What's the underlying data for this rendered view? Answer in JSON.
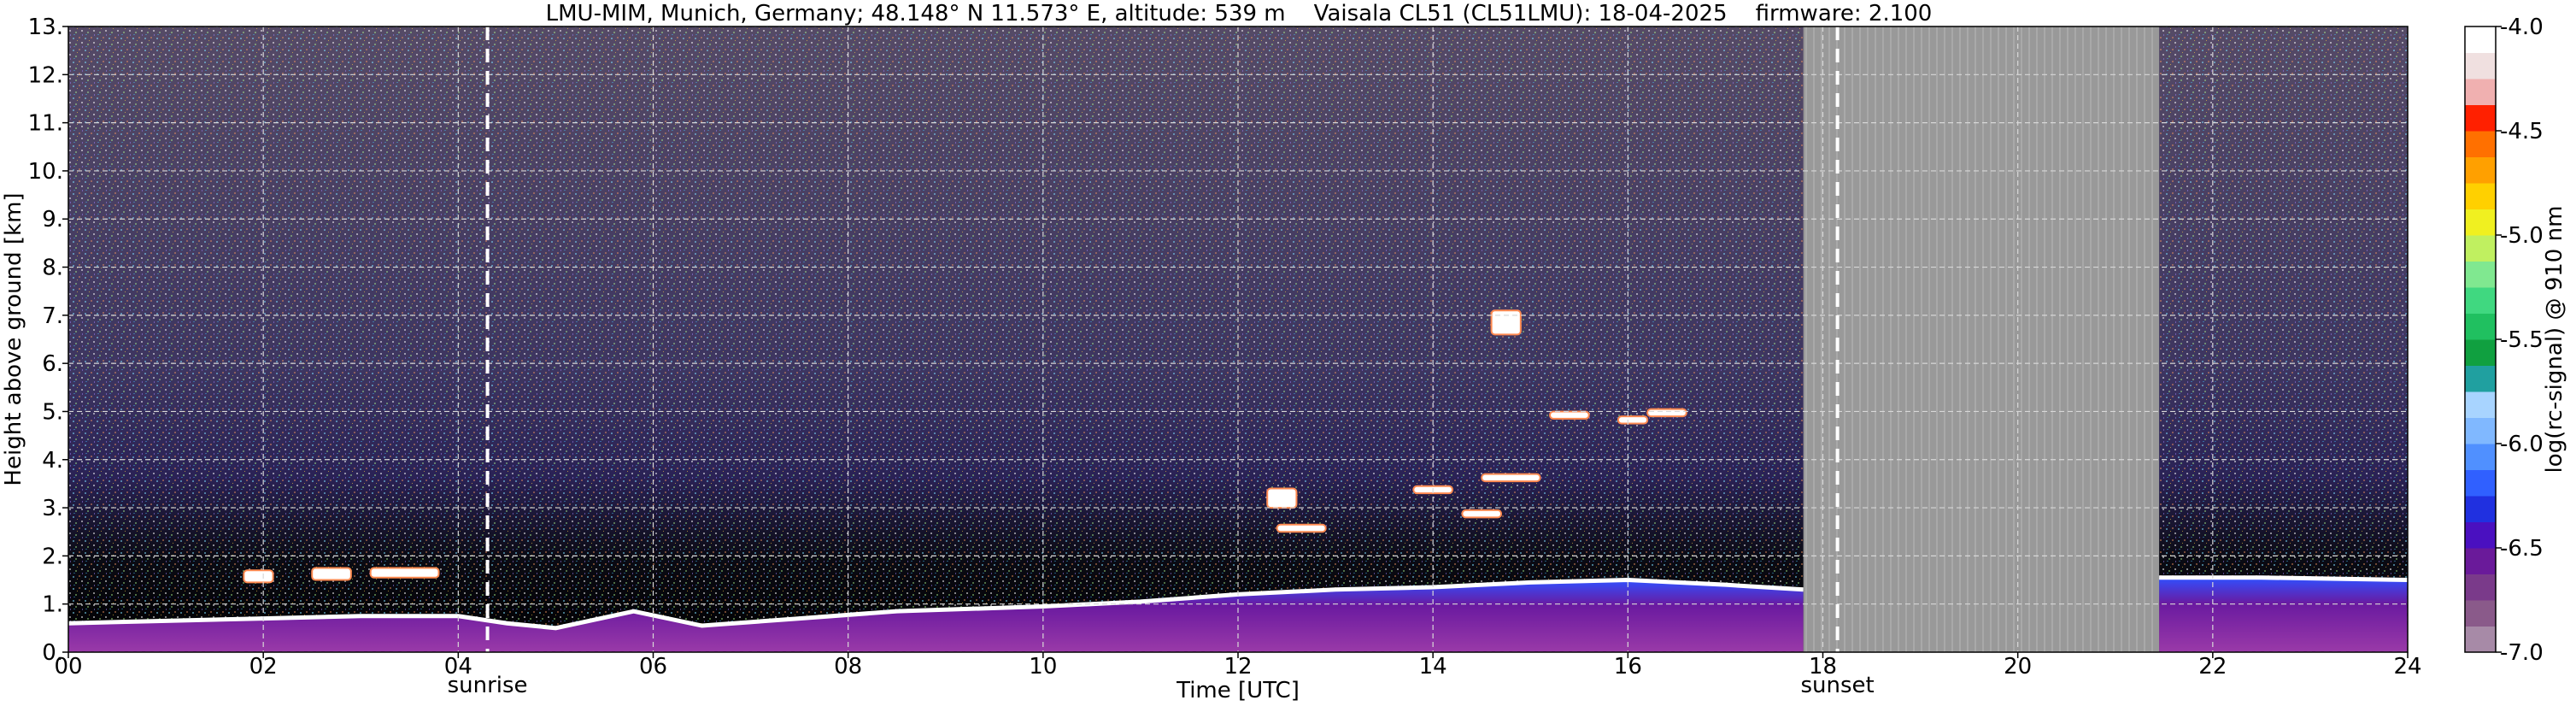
{
  "title": "LMU-MIM, Munich, Germany; 48.148° N 11.573° E, altitude: 539 m    Vaisala CL51 (CL51LMU): 18-04-2025    firmware: 2.100",
  "chart_data": {
    "type": "heatmap",
    "xlabel": "Time [UTC]",
    "ylabel": "Height above ground [km]",
    "colorbar_label": "log(rc-signal) @ 910 nm",
    "xlim": [
      0,
      24
    ],
    "ylim": [
      0,
      13
    ],
    "x_ticks": [
      "00",
      "02",
      "04",
      "06",
      "08",
      "10",
      "12",
      "14",
      "16",
      "18",
      "20",
      "22",
      "24"
    ],
    "y_ticks": [
      "0.",
      "1.",
      "2.",
      "3.",
      "4.",
      "5.",
      "6.",
      "7.",
      "8.",
      "9.",
      "10.",
      "11.",
      "12.",
      "13."
    ],
    "colorbar_range": [
      -7.0,
      -4.0
    ],
    "colorbar_ticks": [
      "-4.0",
      "-4.5",
      "-5.0",
      "-5.5",
      "-6.0",
      "-6.5",
      "-7.0"
    ],
    "colorbar_colors": [
      "#a78aa7",
      "#8a5a8a",
      "#7a3a8a",
      "#6a1a9a",
      "#4a10c0",
      "#2030e0",
      "#3060ff",
      "#5090ff",
      "#80b8ff",
      "#a8d4ff",
      "#20a0a0",
      "#10a040",
      "#20c060",
      "#40d880",
      "#80e890",
      "#c0f060",
      "#f0f020",
      "#ffd000",
      "#ffa000",
      "#ff7000",
      "#ff2000",
      "#f0b0b0",
      "#f0e0e0",
      "#ffffff"
    ],
    "grid": true,
    "vertical_markers": [
      {
        "label": "sunrise",
        "x": 4.3
      },
      {
        "label": "sunset",
        "x": 18.15
      }
    ],
    "no_data_intervals": [
      [
        17.8,
        21.45
      ]
    ],
    "boundary_layer_top_km": [
      {
        "x": 0.0,
        "y": 0.6
      },
      {
        "x": 1.0,
        "y": 0.65
      },
      {
        "x": 2.0,
        "y": 0.7
      },
      {
        "x": 3.0,
        "y": 0.75
      },
      {
        "x": 4.0,
        "y": 0.75
      },
      {
        "x": 4.5,
        "y": 0.6
      },
      {
        "x": 5.0,
        "y": 0.5
      },
      {
        "x": 5.8,
        "y": 0.85
      },
      {
        "x": 6.5,
        "y": 0.55
      },
      {
        "x": 7.5,
        "y": 0.7
      },
      {
        "x": 8.5,
        "y": 0.85
      },
      {
        "x": 10.0,
        "y": 0.95
      },
      {
        "x": 11.0,
        "y": 1.05
      },
      {
        "x": 12.0,
        "y": 1.2
      },
      {
        "x": 13.0,
        "y": 1.3
      },
      {
        "x": 14.0,
        "y": 1.35
      },
      {
        "x": 15.0,
        "y": 1.45
      },
      {
        "x": 16.0,
        "y": 1.5
      },
      {
        "x": 17.0,
        "y": 1.4
      },
      {
        "x": 17.8,
        "y": 1.3
      },
      {
        "x": 21.45,
        "y": 1.55
      },
      {
        "x": 22.5,
        "y": 1.55
      },
      {
        "x": 24.0,
        "y": 1.5
      }
    ],
    "cloud_features": [
      {
        "x0": 1.8,
        "x1": 2.1,
        "y0": 1.45,
        "y1": 1.7
      },
      {
        "x0": 2.5,
        "x1": 2.9,
        "y0": 1.5,
        "y1": 1.75
      },
      {
        "x0": 3.1,
        "x1": 3.8,
        "y0": 1.55,
        "y1": 1.75
      },
      {
        "x0": 12.3,
        "x1": 12.6,
        "y0": 3.0,
        "y1": 3.4
      },
      {
        "x0": 12.4,
        "x1": 12.9,
        "y0": 2.5,
        "y1": 2.65
      },
      {
        "x0": 13.8,
        "x1": 14.2,
        "y0": 3.3,
        "y1": 3.45
      },
      {
        "x0": 14.3,
        "x1": 14.7,
        "y0": 2.8,
        "y1": 2.95
      },
      {
        "x0": 14.5,
        "x1": 15.1,
        "y0": 3.55,
        "y1": 3.7
      },
      {
        "x0": 14.6,
        "x1": 14.9,
        "y0": 6.6,
        "y1": 7.1
      },
      {
        "x0": 15.2,
        "x1": 15.6,
        "y0": 4.85,
        "y1": 5.0
      },
      {
        "x0": 15.9,
        "x1": 16.2,
        "y0": 4.75,
        "y1": 4.9
      },
      {
        "x0": 16.2,
        "x1": 16.6,
        "y0": 4.9,
        "y1": 5.05
      }
    ]
  }
}
